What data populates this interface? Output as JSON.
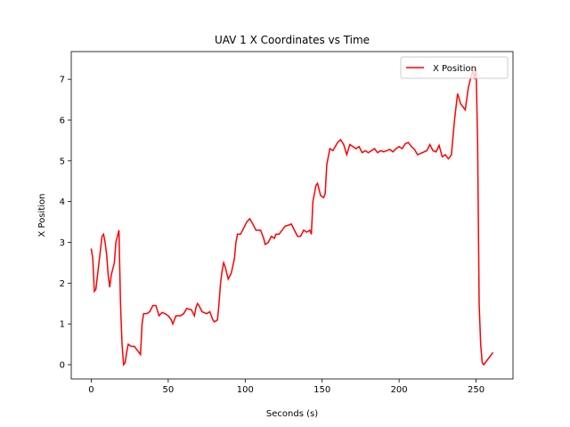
{
  "chart_data": {
    "type": "line",
    "title": "UAV 1 X Coordinates vs Time",
    "x_label": "Seconds (s)",
    "y_label": "X Position",
    "xlim": [
      -13,
      274
    ],
    "ylim": [
      -0.35,
      7.68
    ],
    "xticks": [
      0,
      50,
      100,
      150,
      200,
      250
    ],
    "yticks": [
      0,
      1,
      2,
      3,
      4,
      5,
      6,
      7
    ],
    "legend": "upper right",
    "x": [
      0,
      1,
      2,
      3,
      5,
      7,
      8,
      9,
      10,
      11,
      12,
      13,
      15,
      16,
      18,
      19,
      20,
      21,
      22,
      23,
      24,
      26,
      28,
      30,
      32,
      33,
      34,
      36,
      38,
      40,
      42,
      44,
      46,
      48,
      50,
      52,
      53,
      55,
      58,
      60,
      62,
      65,
      67,
      68,
      69,
      70,
      72,
      75,
      77,
      79,
      80,
      82,
      83,
      84,
      85,
      86,
      87,
      89,
      91,
      93,
      94,
      95,
      97,
      99,
      101,
      103,
      105,
      107,
      110,
      112,
      113,
      115,
      117,
      119,
      120,
      122,
      124,
      126,
      128,
      130,
      132,
      134,
      136,
      138,
      140,
      142,
      143,
      144,
      146,
      147,
      148,
      149,
      151,
      152,
      153,
      155,
      157,
      160,
      162,
      164,
      166,
      168,
      170,
      172,
      174,
      176,
      178,
      180,
      182,
      184,
      186,
      188,
      190,
      192,
      194,
      196,
      198,
      200,
      202,
      204,
      206,
      208,
      210,
      212,
      215,
      218,
      220,
      222,
      224,
      226,
      228,
      230,
      232,
      234,
      236,
      238,
      240,
      242,
      243,
      245,
      247,
      248,
      249,
      250,
      251,
      252,
      253,
      254,
      255,
      257,
      259,
      261
    ],
    "series": [
      {
        "name": "X Position",
        "color": "#ff0000",
        "values": [
          2.85,
          2.6,
          1.8,
          1.85,
          2.5,
          3.15,
          3.2,
          3.0,
          2.7,
          2.2,
          1.9,
          2.2,
          2.5,
          3.0,
          3.3,
          1.5,
          0.5,
          0.0,
          0.05,
          0.3,
          0.5,
          0.45,
          0.45,
          0.35,
          0.25,
          1.0,
          1.25,
          1.25,
          1.3,
          1.45,
          1.45,
          1.2,
          1.28,
          1.25,
          1.2,
          1.1,
          1.0,
          1.2,
          1.2,
          1.25,
          1.38,
          1.35,
          1.2,
          1.4,
          1.5,
          1.45,
          1.3,
          1.25,
          1.3,
          1.1,
          1.05,
          1.1,
          1.5,
          2.0,
          2.3,
          2.5,
          2.4,
          2.1,
          2.25,
          2.6,
          3.0,
          3.2,
          3.2,
          3.35,
          3.5,
          3.58,
          3.45,
          3.3,
          3.3,
          3.1,
          2.95,
          3.0,
          3.15,
          3.1,
          3.2,
          3.2,
          3.3,
          3.4,
          3.42,
          3.45,
          3.3,
          3.15,
          3.15,
          3.3,
          3.25,
          3.3,
          3.2,
          4.0,
          4.4,
          4.45,
          4.3,
          4.15,
          4.1,
          4.2,
          4.9,
          5.3,
          5.25,
          5.45,
          5.52,
          5.4,
          5.15,
          5.4,
          5.35,
          5.3,
          5.35,
          5.2,
          5.25,
          5.2,
          5.25,
          5.3,
          5.2,
          5.25,
          5.22,
          5.25,
          5.28,
          5.22,
          5.3,
          5.35,
          5.3,
          5.42,
          5.45,
          5.35,
          5.28,
          5.15,
          5.2,
          5.25,
          5.4,
          5.25,
          5.22,
          5.38,
          5.1,
          5.15,
          5.05,
          5.15,
          6.0,
          6.65,
          6.4,
          6.3,
          6.25,
          6.8,
          7.1,
          7.2,
          7.0,
          7.3,
          5.5,
          1.5,
          0.5,
          0.05,
          0.0,
          0.1,
          0.2,
          0.3
        ]
      }
    ]
  }
}
